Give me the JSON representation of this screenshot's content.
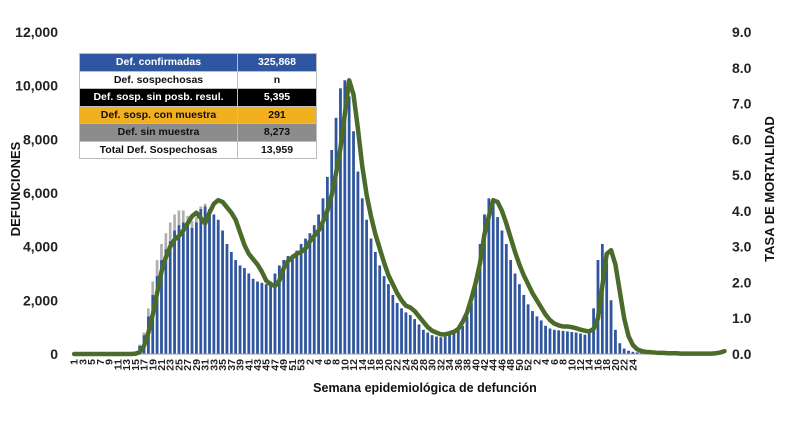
{
  "chart_data": {
    "type": "bar",
    "xlabel": "Semana epidemiológica de defunción",
    "ylabel": "DEFUNCIONES",
    "y2label": "TASA DE MORTALIDAD",
    "ylim": [
      0,
      12000
    ],
    "y2lim": [
      0,
      9
    ],
    "y_ticks": [
      "0",
      "2,000",
      "4,000",
      "6,000",
      "8,000",
      "10,000",
      "12,000"
    ],
    "y2_ticks": [
      "0.0",
      "1.0",
      "2.0",
      "3.0",
      "4.0",
      "5.0",
      "6.0",
      "7.0",
      "8.0",
      "9.0"
    ],
    "x_tick_labels": [
      "1",
      "3",
      "5",
      "7",
      "9",
      "11",
      "13",
      "15",
      "17",
      "19",
      "21",
      "23",
      "25",
      "27",
      "29",
      "31",
      "33",
      "35",
      "37",
      "39",
      "41",
      "43",
      "45",
      "47",
      "49",
      "51",
      "53",
      "2",
      "4",
      "6",
      "8",
      "10",
      "12",
      "14",
      "16",
      "18",
      "20",
      "22",
      "24",
      "26",
      "28",
      "30",
      "32",
      "34",
      "36",
      "38",
      "40",
      "42",
      "44",
      "46",
      "48",
      "50",
      "52",
      "2",
      "4",
      "6",
      "8",
      "10",
      "12",
      "14",
      "16",
      "18",
      "20",
      "22",
      "24"
    ],
    "series": [
      {
        "name": "Def. confirmadas",
        "color": "#2f56a0",
        "values": [
          0,
          0,
          0,
          0,
          0,
          0,
          0,
          0,
          0,
          0,
          0,
          0,
          0,
          20,
          80,
          300,
          700,
          1400,
          2200,
          2900,
          3500,
          3900,
          4200,
          4600,
          4800,
          4900,
          4800,
          4700,
          4900,
          5400,
          5500,
          5400,
          5200,
          5000,
          4600,
          4100,
          3800,
          3500,
          3300,
          3200,
          3000,
          2800,
          2700,
          2650,
          2600,
          2700,
          3000,
          3300,
          3500,
          3650,
          3700,
          3850,
          4100,
          4300,
          4500,
          4800,
          5200,
          5800,
          6600,
          7600,
          8800,
          9900,
          10200,
          9600,
          8300,
          6800,
          5800,
          5000,
          4300,
          3800,
          3300,
          2900,
          2600,
          2200,
          1900,
          1700,
          1550,
          1450,
          1300,
          1100,
          900,
          800,
          700,
          650,
          620,
          650,
          700,
          800,
          900,
          1050,
          1400,
          1900,
          2800,
          4100,
          5200,
          5800,
          5600,
          5100,
          4600,
          4100,
          3500,
          3000,
          2600,
          2200,
          1850,
          1600,
          1400,
          1250,
          1050,
          950,
          900,
          880,
          860,
          840,
          820,
          800,
          760,
          720,
          900,
          1700,
          3500,
          4100,
          3400,
          2000,
          900,
          400,
          200,
          120,
          80,
          60,
          50,
          40,
          30,
          20,
          20,
          20,
          15,
          10,
          10,
          10,
          10,
          10,
          10,
          10,
          10,
          10,
          20,
          40
        ]
      },
      {
        "name": "Def. sospechosas",
        "color": "#b0b0b0",
        "values": [
          0,
          0,
          0,
          0,
          0,
          0,
          0,
          0,
          0,
          0,
          0,
          0,
          0,
          30,
          100,
          350,
          800,
          1700,
          2700,
          3500,
          4100,
          4500,
          4900,
          5200,
          5350,
          5350,
          5150,
          4950,
          5100,
          5500,
          5600,
          5400,
          5200,
          5000,
          4600,
          4100,
          3800,
          3500,
          3300,
          3200,
          3000,
          2800,
          2700,
          2650,
          2600,
          2700,
          3000,
          3300,
          3500,
          3650,
          3700,
          3850,
          4100,
          4300,
          4500,
          4800,
          5200,
          5800,
          6600,
          7600,
          8800,
          9900,
          10200,
          9600,
          8300,
          6800,
          5800,
          5000,
          4300,
          3800,
          3300,
          2900,
          2600,
          2200,
          1900,
          1700,
          1550,
          1450,
          1300,
          1100,
          900,
          800,
          700,
          650,
          620,
          650,
          700,
          800,
          900,
          1050,
          1400,
          1900,
          2800,
          4100,
          5200,
          5800,
          5600,
          5100,
          4600,
          4100,
          3500,
          3000,
          2600,
          2200,
          1850,
          1600,
          1400,
          1250,
          1050,
          950,
          900,
          880,
          860,
          840,
          820,
          800,
          760,
          720,
          900,
          1700,
          3500,
          4100,
          3400,
          2000,
          900,
          400,
          200,
          120,
          80,
          60,
          50,
          40,
          30,
          20,
          20,
          20,
          15,
          10,
          10,
          10,
          10,
          10,
          10,
          10,
          10,
          10,
          20,
          40
        ]
      },
      {
        "name": "Tasa de mortalidad",
        "color": "#4a6b2a",
        "axis": "right",
        "type": "line",
        "values": [
          0,
          0,
          0,
          0,
          0,
          0,
          0,
          0,
          0,
          0,
          0,
          0,
          0,
          0,
          0.0056,
          0.05,
          0.23,
          0.6,
          1.1,
          1.7,
          2.3,
          2.7,
          3.0,
          3.2,
          3.3,
          3.45,
          3.65,
          3.85,
          3.95,
          3.8,
          3.65,
          3.95,
          4.2,
          4.3,
          4.25,
          4.1,
          3.95,
          3.75,
          3.4,
          3.05,
          2.8,
          2.65,
          2.5,
          2.3,
          2.05,
          1.95,
          1.9,
          2.05,
          2.4,
          2.6,
          2.7,
          2.8,
          2.85,
          2.95,
          3.15,
          3.3,
          3.45,
          3.7,
          4.0,
          4.45,
          5.05,
          5.75,
          6.7,
          7.65,
          7.25,
          6.3,
          5.25,
          4.45,
          3.85,
          3.35,
          2.95,
          2.55,
          2.2,
          1.95,
          1.7,
          1.5,
          1.35,
          1.3,
          1.2,
          1.05,
          0.9,
          0.75,
          0.65,
          0.6,
          0.55,
          0.55,
          0.58,
          0.62,
          0.7,
          0.9,
          1.15,
          1.55,
          2.0,
          2.55,
          3.35,
          3.85,
          4.3,
          4.25,
          4.0,
          3.65,
          3.25,
          2.85,
          2.5,
          2.2,
          1.95,
          1.7,
          1.5,
          1.3,
          1.1,
          0.95,
          0.85,
          0.8,
          0.77,
          0.77,
          0.75,
          0.72,
          0.68,
          0.65,
          0.63,
          0.7,
          1.0,
          1.9,
          2.8,
          2.9,
          2.5,
          1.75,
          1.0,
          0.5,
          0.25,
          0.13,
          0.08,
          0.06,
          0.05,
          0.04,
          0.03,
          0.03,
          0.02,
          0.02,
          0.02,
          0.01,
          0.01,
          0.01,
          0.01,
          0.01,
          0.01,
          0.01,
          0.01,
          0.02,
          0.04,
          0.08
        ]
      }
    ],
    "table": [
      {
        "label": "Def. confirmadas",
        "value": "325,868",
        "style": "conf"
      },
      {
        "label": "Def. sospechosas",
        "value": "n",
        "style": "sosp"
      },
      {
        "label": "Def. sosp. sin posb. resul.",
        "value": "5,395",
        "style": "sinres"
      },
      {
        "label": "Def. sosp. con  muestra",
        "value": "291",
        "style": "con"
      },
      {
        "label": "Def. sin muestra",
        "value": "8,273",
        "style": "sinm"
      },
      {
        "label": "Total Def. Sospechosas",
        "value": "13,959",
        "style": "total"
      }
    ],
    "grid": false,
    "legend": "table top-left"
  }
}
